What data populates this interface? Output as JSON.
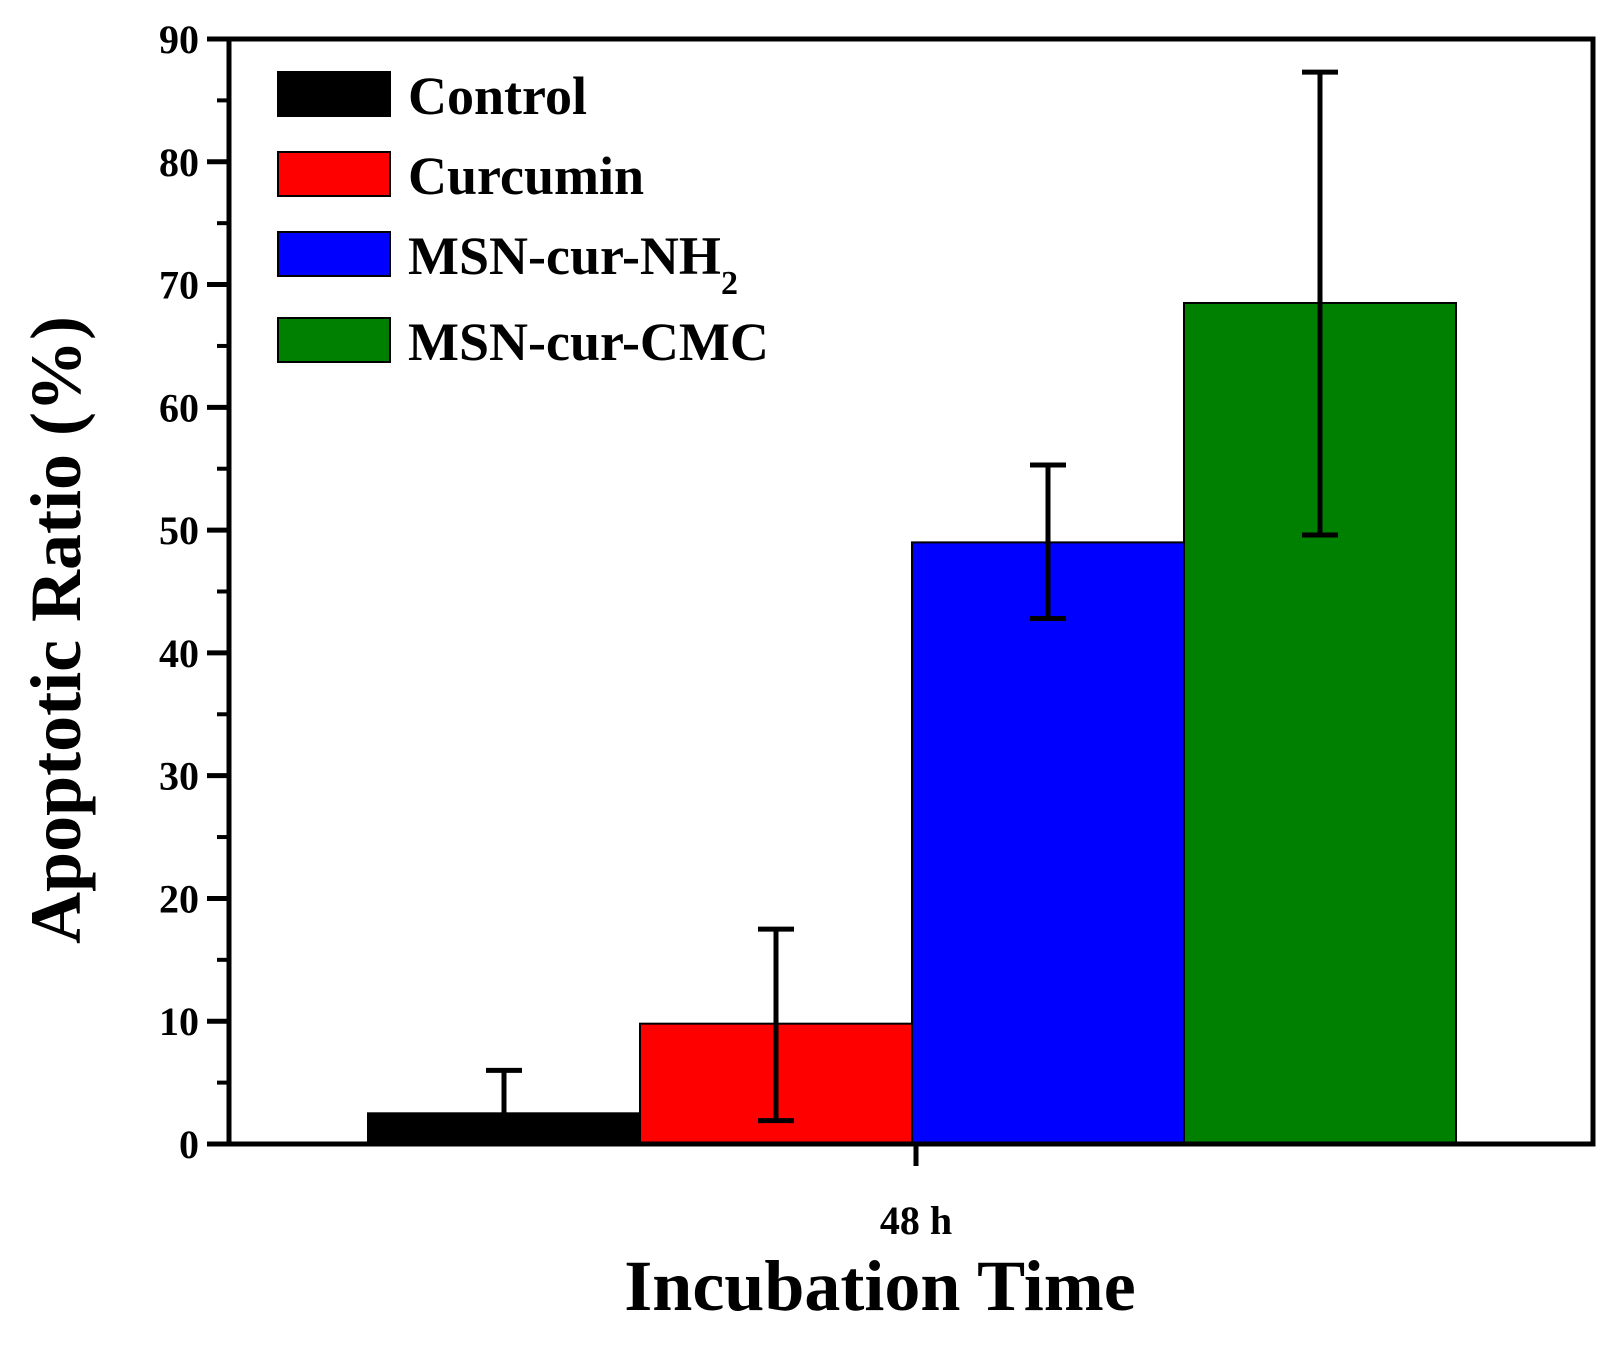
{
  "chart_data": {
    "type": "bar",
    "categories": [
      "48 h"
    ],
    "series": [
      {
        "name": "Control",
        "name_sub": "",
        "color": "#000000",
        "value": 2.5,
        "error_low": 2.0,
        "error_high": 6.0
      },
      {
        "name": "Curcumin",
        "name_sub": "",
        "color": "#ff0000",
        "value": 9.8,
        "error_low": 1.9,
        "error_high": 17.5
      },
      {
        "name": "MSN-cur-NH",
        "name_sub": "2",
        "color": "#0000ff",
        "value": 49.0,
        "error_low": 42.8,
        "error_high": 55.3
      },
      {
        "name": "MSN-cur-CMC",
        "name_sub": "",
        "color": "#008000",
        "value": 68.5,
        "error_low": 49.6,
        "error_high": 87.3
      }
    ],
    "xlabel": "Incubation Time",
    "ylabel": "Apoptotic Ratio (%)",
    "ylim": [
      0,
      90
    ],
    "yticks": [
      "0",
      "10",
      "20",
      "30",
      "40",
      "50",
      "60",
      "70",
      "80",
      "90"
    ],
    "y_minor_step": 5,
    "legend_position": "top-left",
    "grid": false
  }
}
